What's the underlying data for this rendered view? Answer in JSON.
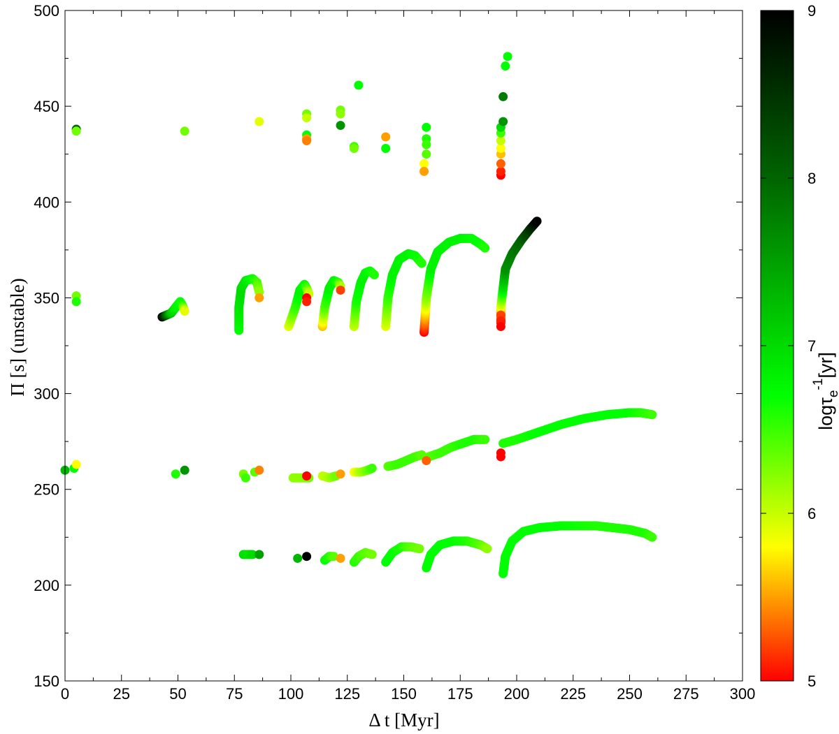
{
  "chart_data": {
    "type": "scatter",
    "xlabel": "Δ t [Myr]",
    "ylabel": "Π [s] (unstable)",
    "xlim": [
      0,
      300
    ],
    "ylim": [
      150,
      500
    ],
    "xticks": [
      0,
      25,
      50,
      75,
      100,
      125,
      150,
      175,
      200,
      225,
      250,
      275,
      300
    ],
    "yticks": [
      150,
      200,
      250,
      300,
      350,
      400,
      450,
      500
    ],
    "grid": false,
    "colorbar": {
      "label_main": "logτ",
      "label_sub": "e",
      "label_sup": "-1",
      "label_unit": "[yr]",
      "range": [
        5,
        9
      ],
      "ticks": [
        5,
        6,
        7,
        8,
        9
      ],
      "colors": [
        "#ff0000",
        "#ffff00",
        "#00ff00",
        "#006400",
        "#000000"
      ],
      "stops": [
        5,
        5.8,
        6.7,
        8,
        9
      ]
    },
    "marker_color_variable": "logτe^-1 [yr]",
    "points": [
      {
        "x": 0,
        "y": 260,
        "c": 7.3
      },
      {
        "x": 4,
        "y": 261,
        "c": 6.7
      },
      {
        "x": 5,
        "y": 263,
        "c": 5.8
      },
      {
        "x": 5,
        "y": 438,
        "c": 8.0
      },
      {
        "x": 5,
        "y": 437,
        "c": 6.3
      },
      {
        "x": 5,
        "y": 351,
        "c": 6.3
      },
      {
        "x": 5,
        "y": 348,
        "c": 6.6
      },
      {
        "x": 49,
        "y": 258,
        "c": 6.6
      },
      {
        "x": 53,
        "y": 260,
        "c": 7.6
      },
      {
        "x": 53,
        "y": 437,
        "c": 6.3
      },
      {
        "x": 86,
        "y": 442,
        "c": 5.9
      },
      {
        "x": 86,
        "y": 350,
        "c": 5.5
      },
      {
        "x": 79,
        "y": 258,
        "c": 6.3
      },
      {
        "x": 80,
        "y": 256,
        "c": 6.5
      },
      {
        "x": 84,
        "y": 259,
        "c": 6.4
      },
      {
        "x": 86,
        "y": 260,
        "c": 5.4
      },
      {
        "x": 107,
        "y": 446,
        "c": 6.3
      },
      {
        "x": 107,
        "y": 444,
        "c": 6.0
      },
      {
        "x": 107,
        "y": 435,
        "c": 6.7
      },
      {
        "x": 107,
        "y": 433,
        "c": 5.5
      },
      {
        "x": 107,
        "y": 432,
        "c": 5.4
      },
      {
        "x": 107,
        "y": 350,
        "c": 5.0
      },
      {
        "x": 107,
        "y": 348,
        "c": 5.1
      },
      {
        "x": 107,
        "y": 257,
        "c": 5.0
      },
      {
        "x": 122,
        "y": 448,
        "c": 6.3
      },
      {
        "x": 122,
        "y": 446,
        "c": 6.2
      },
      {
        "x": 122,
        "y": 440,
        "c": 7.6
      },
      {
        "x": 122,
        "y": 354,
        "c": 5.2
      },
      {
        "x": 122,
        "y": 258,
        "c": 5.5
      },
      {
        "x": 128,
        "y": 429,
        "c": 6.5
      },
      {
        "x": 128,
        "y": 428,
        "c": 6.3
      },
      {
        "x": 130,
        "y": 461,
        "c": 6.7
      },
      {
        "x": 142,
        "y": 434,
        "c": 5.5
      },
      {
        "x": 142,
        "y": 428,
        "c": 6.7
      },
      {
        "x": 160,
        "y": 439,
        "c": 6.7
      },
      {
        "x": 160,
        "y": 433,
        "c": 6.6
      },
      {
        "x": 160,
        "y": 430,
        "c": 6.5
      },
      {
        "x": 160,
        "y": 425,
        "c": 6.4
      },
      {
        "x": 159,
        "y": 420,
        "c": 5.8
      },
      {
        "x": 159,
        "y": 416,
        "c": 5.5
      },
      {
        "x": 160,
        "y": 265,
        "c": 5.3
      },
      {
        "x": 193,
        "y": 414,
        "c": 5.0
      },
      {
        "x": 193,
        "y": 416,
        "c": 5.1
      },
      {
        "x": 193,
        "y": 420,
        "c": 5.3
      },
      {
        "x": 193,
        "y": 425,
        "c": 5.6
      },
      {
        "x": 193,
        "y": 428,
        "c": 5.8
      },
      {
        "x": 193,
        "y": 432,
        "c": 6.0
      },
      {
        "x": 193,
        "y": 436,
        "c": 6.5
      },
      {
        "x": 193,
        "y": 439,
        "c": 7.0
      },
      {
        "x": 194,
        "y": 442,
        "c": 7.6
      },
      {
        "x": 194,
        "y": 455,
        "c": 7.8
      },
      {
        "x": 195,
        "y": 471,
        "c": 6.7
      },
      {
        "x": 196,
        "y": 476,
        "c": 6.7
      },
      {
        "x": 193,
        "y": 341,
        "c": 5.2
      },
      {
        "x": 193,
        "y": 338,
        "c": 5.1
      },
      {
        "x": 193,
        "y": 335,
        "c": 5.0
      },
      {
        "x": 193,
        "y": 269,
        "c": 5.0
      },
      {
        "x": 193,
        "y": 267,
        "c": 5.0
      },
      {
        "x": 107,
        "y": 215,
        "c": 9.0
      },
      {
        "x": 122,
        "y": 214,
        "c": 5.5
      },
      {
        "x": 103,
        "y": 214,
        "c": 7.3
      },
      {
        "x": 86,
        "y": 216,
        "c": 7.5
      }
    ],
    "tracks": [
      {
        "points": [
          [
            43,
            340,
            9.0
          ],
          [
            45,
            341,
            8.0
          ],
          [
            47,
            342,
            7.2
          ],
          [
            49,
            345,
            6.8
          ],
          [
            51,
            348,
            6.7
          ],
          [
            52,
            346,
            6.6
          ],
          [
            53,
            343,
            5.9
          ]
        ]
      },
      {
        "points": [
          [
            77,
            333,
            6.7
          ],
          [
            77,
            345,
            6.9
          ],
          [
            78,
            355,
            7.0
          ],
          [
            80,
            359,
            6.9
          ],
          [
            83,
            360,
            6.7
          ],
          [
            85,
            358,
            6.5
          ],
          [
            86,
            353,
            6.2
          ]
        ]
      },
      {
        "points": [
          [
            99,
            335,
            5.9
          ],
          [
            102,
            345,
            6.5
          ],
          [
            104,
            354,
            6.8
          ],
          [
            106,
            357,
            6.7
          ],
          [
            107,
            355,
            6.5
          ],
          [
            108,
            352,
            6.0
          ]
        ]
      },
      {
        "points": [
          [
            114,
            335,
            5.6
          ],
          [
            115,
            345,
            6.4
          ],
          [
            117,
            355,
            6.8
          ],
          [
            119,
            359,
            6.8
          ],
          [
            121,
            358,
            6.6
          ],
          [
            122,
            356,
            6.1
          ]
        ]
      },
      {
        "points": [
          [
            128,
            335,
            6.0
          ],
          [
            129,
            348,
            6.6
          ],
          [
            131,
            358,
            6.8
          ],
          [
            133,
            363,
            6.8
          ],
          [
            135,
            364,
            6.7
          ],
          [
            137,
            362,
            6.6
          ]
        ]
      },
      {
        "points": [
          [
            142,
            335,
            5.9
          ],
          [
            143,
            350,
            6.5
          ],
          [
            145,
            362,
            6.8
          ],
          [
            148,
            370,
            6.8
          ],
          [
            152,
            373,
            6.8
          ],
          [
            155,
            372,
            6.7
          ],
          [
            158,
            368,
            6.6
          ]
        ]
      },
      {
        "points": [
          [
            159,
            332,
            5.0
          ],
          [
            160,
            350,
            6.2
          ],
          [
            162,
            365,
            6.8
          ],
          [
            165,
            374,
            6.8
          ],
          [
            170,
            379,
            6.8
          ],
          [
            175,
            381,
            6.8
          ],
          [
            180,
            381,
            6.7
          ],
          [
            184,
            378,
            6.7
          ],
          [
            186,
            376,
            6.6
          ]
        ]
      },
      {
        "points": [
          [
            193,
            337,
            5.0
          ],
          [
            193,
            345,
            5.8
          ],
          [
            194,
            355,
            6.9
          ],
          [
            195,
            365,
            7.6
          ],
          [
            198,
            373,
            7.8
          ],
          [
            202,
            380,
            8.0
          ],
          [
            206,
            386,
            8.5
          ],
          [
            209,
            390,
            9.0
          ]
        ]
      },
      {
        "points": [
          [
            101,
            256,
            6.2
          ],
          [
            105,
            256,
            6.2
          ],
          [
            108,
            256,
            6.3
          ]
        ]
      },
      {
        "points": [
          [
            114,
            257,
            6.0
          ],
          [
            117,
            256,
            6.1
          ],
          [
            120,
            257,
            6.3
          ]
        ]
      },
      {
        "points": [
          [
            128,
            259,
            5.8
          ],
          [
            131,
            259,
            6.1
          ],
          [
            134,
            260,
            6.3
          ],
          [
            136,
            261,
            6.5
          ]
        ]
      },
      {
        "points": [
          [
            143,
            262,
            6.4
          ],
          [
            147,
            263,
            6.5
          ],
          [
            151,
            265,
            6.5
          ],
          [
            155,
            267,
            6.5
          ],
          [
            158,
            268,
            6.4
          ]
        ]
      },
      {
        "points": [
          [
            161,
            267,
            6.4
          ],
          [
            166,
            269,
            6.5
          ],
          [
            171,
            272,
            6.5
          ],
          [
            176,
            274,
            6.6
          ],
          [
            181,
            276,
            6.6
          ],
          [
            186,
            276,
            6.5
          ]
        ]
      },
      {
        "points": [
          [
            194,
            274,
            6.6
          ],
          [
            200,
            276,
            6.6
          ],
          [
            210,
            280,
            6.7
          ],
          [
            220,
            284,
            6.7
          ],
          [
            230,
            287,
            6.7
          ],
          [
            240,
            289,
            6.7
          ],
          [
            250,
            290,
            6.7
          ],
          [
            255,
            290,
            6.6
          ],
          [
            260,
            289,
            6.5
          ]
        ]
      },
      {
        "points": [
          [
            79,
            216,
            7.0
          ],
          [
            81,
            216,
            6.9
          ],
          [
            83,
            216,
            7.0
          ]
        ]
      },
      {
        "points": [
          [
            115,
            213,
            6.7
          ],
          [
            117,
            215,
            6.6
          ],
          [
            119,
            215,
            6.4
          ]
        ]
      },
      {
        "points": [
          [
            128,
            212,
            6.6
          ],
          [
            130,
            215,
            6.5
          ],
          [
            133,
            217,
            6.4
          ],
          [
            136,
            216,
            6.3
          ]
        ]
      },
      {
        "points": [
          [
            142,
            212,
            6.7
          ],
          [
            145,
            217,
            6.7
          ],
          [
            149,
            220,
            6.6
          ],
          [
            153,
            220,
            6.4
          ],
          [
            157,
            219,
            6.3
          ]
        ]
      },
      {
        "points": [
          [
            160,
            209,
            6.7
          ],
          [
            162,
            216,
            6.7
          ],
          [
            166,
            221,
            6.7
          ],
          [
            172,
            223,
            6.7
          ],
          [
            178,
            223,
            6.6
          ],
          [
            184,
            221,
            6.4
          ],
          [
            187,
            219,
            6.2
          ]
        ]
      },
      {
        "points": [
          [
            194,
            206,
            6.7
          ],
          [
            195,
            215,
            6.7
          ],
          [
            198,
            223,
            6.7
          ],
          [
            203,
            228,
            6.7
          ],
          [
            210,
            230,
            6.7
          ],
          [
            220,
            231,
            6.7
          ],
          [
            235,
            231,
            6.6
          ],
          [
            250,
            229,
            6.6
          ],
          [
            257,
            227,
            6.6
          ],
          [
            260,
            225,
            6.5
          ]
        ]
      }
    ]
  }
}
